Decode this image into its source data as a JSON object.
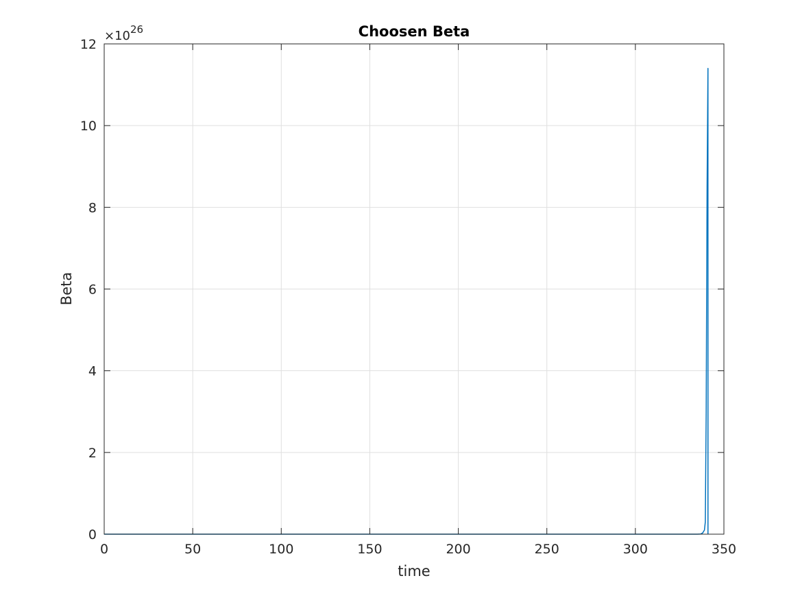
{
  "chart_data": {
    "type": "line",
    "title": "Choosen Beta",
    "xlabel": "time",
    "ylabel": "Beta",
    "xlim": [
      0,
      350
    ],
    "ylim": [
      0,
      12
    ],
    "y_exponent_label": "×10",
    "y_exponent": "26",
    "y_scale_factor": 1e+26,
    "xticks": [
      0,
      50,
      100,
      150,
      200,
      250,
      300,
      350
    ],
    "yticks": [
      0,
      2,
      4,
      6,
      8,
      10,
      12
    ],
    "grid": true,
    "series": [
      {
        "color": "#0072BD",
        "x": [
          0,
          335,
          337,
          338,
          339,
          339.5,
          340,
          340.5,
          341,
          341
        ],
        "y": [
          0,
          0,
          0.005,
          0.03,
          0.1,
          0.3,
          3.0,
          8.5,
          11.4,
          0
        ]
      }
    ]
  }
}
